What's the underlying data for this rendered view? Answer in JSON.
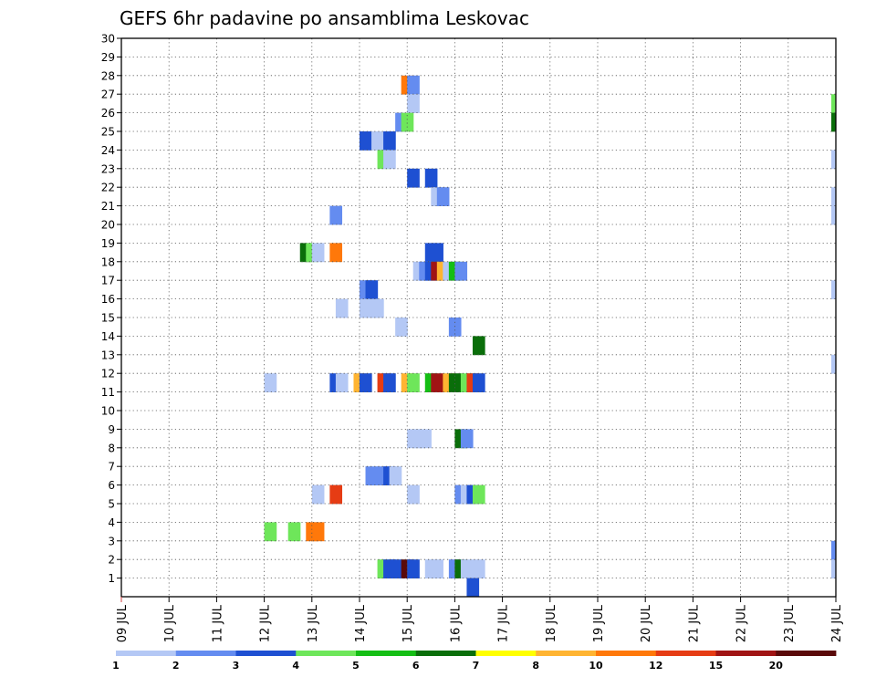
{
  "chart_data": {
    "type": "heatmap",
    "title": "GEFS 6hr padavine po ansamblima Leskovac",
    "x_tick_labels": [
      "09 JUL",
      "10 JUL",
      "11 JUL",
      "12 JUL",
      "13 JUL",
      "14 JUL",
      "15 JUL",
      "16 JUL",
      "17 JUL",
      "18 JUL",
      "19 JUL",
      "20 JUL",
      "21 JUL",
      "22 JUL",
      "23 JUL",
      "24 JUL"
    ],
    "y_tick_labels": [
      "1",
      "2",
      "3",
      "4",
      "5",
      "6",
      "7",
      "8",
      "9",
      "10",
      "11",
      "12",
      "13",
      "14",
      "15",
      "16",
      "17",
      "18",
      "19",
      "20",
      "21",
      "22",
      "23",
      "24",
      "25",
      "26",
      "27",
      "28",
      "29",
      "30"
    ],
    "xlim": [
      0,
      60
    ],
    "ylim": [
      0,
      30
    ],
    "grid": true,
    "legend": {
      "placement": "bottom",
      "labels": [
        "1",
        "2",
        "3",
        "4",
        "5",
        "6",
        "7",
        "8",
        "10",
        "12",
        "15",
        "20"
      ],
      "colors": [
        "#b4c8f5",
        "#648cf0",
        "#1e50d2",
        "#6ee65a",
        "#14be14",
        "#0a6e0a",
        "#ffff00",
        "#ffb432",
        "#ff780a",
        "#e63c14",
        "#a01414",
        "#5a0a0a"
      ]
    },
    "class_colors": [
      "#b4c8f5",
      "#648cf0",
      "#1e50d2",
      "#6ee65a",
      "#14be14",
      "#0a6e0a",
      "#ffff00",
      "#ffb432",
      "#ff780a",
      "#e63c14",
      "#a01414",
      "#5a0a0a"
    ],
    "cells": [
      [
        23.5,
        28,
        8
      ],
      [
        24,
        28,
        1
      ],
      [
        24,
        27,
        0
      ],
      [
        60,
        27,
        3
      ],
      [
        23,
        26,
        1
      ],
      [
        23.5,
        26,
        3
      ],
      [
        60,
        26,
        5
      ],
      [
        20,
        25,
        2
      ],
      [
        21,
        25,
        0
      ],
      [
        22,
        25,
        2
      ],
      [
        21.5,
        24,
        3
      ],
      [
        22,
        24,
        0
      ],
      [
        60,
        24,
        0
      ],
      [
        24,
        23,
        2
      ],
      [
        25.5,
        23,
        2
      ],
      [
        26,
        22,
        0
      ],
      [
        26.5,
        22,
        1
      ],
      [
        60,
        22,
        0
      ],
      [
        17.5,
        21,
        1
      ],
      [
        60,
        21,
        0
      ],
      [
        15,
        19,
        5
      ],
      [
        15.5,
        19,
        3
      ],
      [
        16,
        19,
        0
      ],
      [
        17.5,
        19,
        8
      ],
      [
        25.5,
        19,
        2
      ],
      [
        26,
        19,
        2
      ],
      [
        24.5,
        18,
        0
      ],
      [
        25,
        18,
        1
      ],
      [
        25.5,
        18,
        2
      ],
      [
        26,
        18,
        10
      ],
      [
        26.5,
        18,
        7
      ],
      [
        27,
        18,
        0
      ],
      [
        27.5,
        18,
        4
      ],
      [
        28,
        18,
        1
      ],
      [
        20,
        17,
        1
      ],
      [
        20.5,
        17,
        2
      ],
      [
        60,
        17,
        0
      ],
      [
        18,
        16,
        0
      ],
      [
        20,
        16,
        0
      ],
      [
        20.5,
        16,
        0
      ],
      [
        21,
        16,
        0
      ],
      [
        23,
        15,
        0
      ],
      [
        27.5,
        15,
        1
      ],
      [
        29.5,
        14,
        5
      ],
      [
        60,
        13,
        0
      ],
      [
        12,
        12,
        0
      ],
      [
        17.5,
        12,
        2
      ],
      [
        18,
        12,
        0
      ],
      [
        19.5,
        12,
        7
      ],
      [
        20,
        12,
        2
      ],
      [
        21.5,
        12,
        9
      ],
      [
        22,
        12,
        2
      ],
      [
        23.5,
        12,
        7
      ],
      [
        24,
        12,
        3
      ],
      [
        25.5,
        12,
        4
      ],
      [
        26,
        12,
        10
      ],
      [
        27,
        12,
        7
      ],
      [
        27.5,
        12,
        5
      ],
      [
        28.5,
        12,
        3
      ],
      [
        29,
        12,
        9
      ],
      [
        29.5,
        12,
        2
      ],
      [
        24,
        9,
        0
      ],
      [
        24.5,
        9,
        0
      ],
      [
        25,
        9,
        0
      ],
      [
        28,
        9,
        5
      ],
      [
        28.5,
        9,
        1
      ],
      [
        20.5,
        7,
        1
      ],
      [
        21.5,
        7,
        1
      ],
      [
        22,
        7,
        2
      ],
      [
        22.5,
        7,
        0
      ],
      [
        16,
        6,
        0
      ],
      [
        17.5,
        6,
        9
      ],
      [
        24,
        6,
        0
      ],
      [
        28,
        6,
        1
      ],
      [
        28.5,
        6,
        0
      ],
      [
        29,
        6,
        2
      ],
      [
        29.5,
        6,
        3
      ],
      [
        12,
        4,
        3
      ],
      [
        14,
        4,
        3
      ],
      [
        15.5,
        4,
        8
      ],
      [
        16,
        4,
        8
      ],
      [
        60,
        3,
        1
      ],
      [
        21.5,
        2,
        3
      ],
      [
        22,
        2,
        2
      ],
      [
        22.5,
        2,
        2
      ],
      [
        23.5,
        2,
        11
      ],
      [
        24,
        2,
        2
      ],
      [
        25.5,
        2,
        0
      ],
      [
        26,
        2,
        0
      ],
      [
        27.5,
        2,
        1
      ],
      [
        28,
        2,
        5
      ],
      [
        28.5,
        2,
        0
      ],
      [
        29.5,
        2,
        0
      ],
      [
        60,
        2,
        0
      ],
      [
        29,
        1,
        2
      ]
    ]
  }
}
